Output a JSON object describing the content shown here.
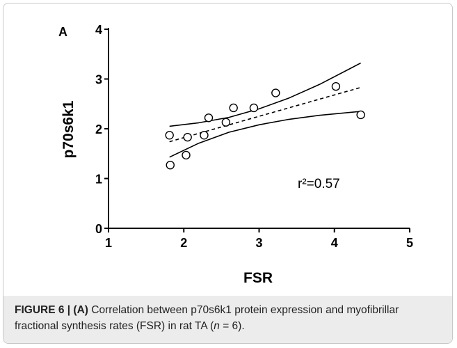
{
  "panel_label": "A",
  "annotation": "r²=0.57",
  "caption": {
    "label": "FIGURE 6 | (A)",
    "text_1": " Correlation between p70s6k1 protein expression and myofibrillar fractional synthesis rates (FSR) in rat TA (",
    "n_symbol": "n",
    "text_2": " = 6)."
  },
  "chart_data": {
    "type": "scatter",
    "xlabel": "FSR",
    "ylabel": "p70s6k1",
    "xlim": [
      1,
      5
    ],
    "ylim": [
      0,
      4
    ],
    "xticks": [
      1,
      2,
      3,
      4,
      5
    ],
    "yticks": [
      0,
      1,
      2,
      3,
      4
    ],
    "grid": false,
    "points": [
      {
        "x": 1.81,
        "y": 1.87
      },
      {
        "x": 1.82,
        "y": 1.27
      },
      {
        "x": 2.03,
        "y": 1.47
      },
      {
        "x": 2.05,
        "y": 1.83
      },
      {
        "x": 2.27,
        "y": 1.87
      },
      {
        "x": 2.33,
        "y": 2.22
      },
      {
        "x": 2.56,
        "y": 2.13
      },
      {
        "x": 2.66,
        "y": 2.42
      },
      {
        "x": 2.93,
        "y": 2.42
      },
      {
        "x": 3.22,
        "y": 2.72
      },
      {
        "x": 4.02,
        "y": 2.85
      },
      {
        "x": 4.35,
        "y": 2.28
      }
    ],
    "fit_line": {
      "x": [
        1.81,
        4.35
      ],
      "y": [
        1.74,
        2.83
      ]
    },
    "ci_upper": {
      "x": [
        1.81,
        2.2,
        2.6,
        3.0,
        3.4,
        3.8,
        4.35
      ],
      "y": [
        2.05,
        2.12,
        2.23,
        2.4,
        2.62,
        2.89,
        3.32
      ]
    },
    "ci_lower": {
      "x": [
        1.81,
        2.2,
        2.6,
        3.0,
        3.4,
        3.8,
        4.35
      ],
      "y": [
        1.43,
        1.71,
        1.93,
        2.08,
        2.19,
        2.27,
        2.35
      ]
    },
    "r_squared": "r²=0.57"
  }
}
